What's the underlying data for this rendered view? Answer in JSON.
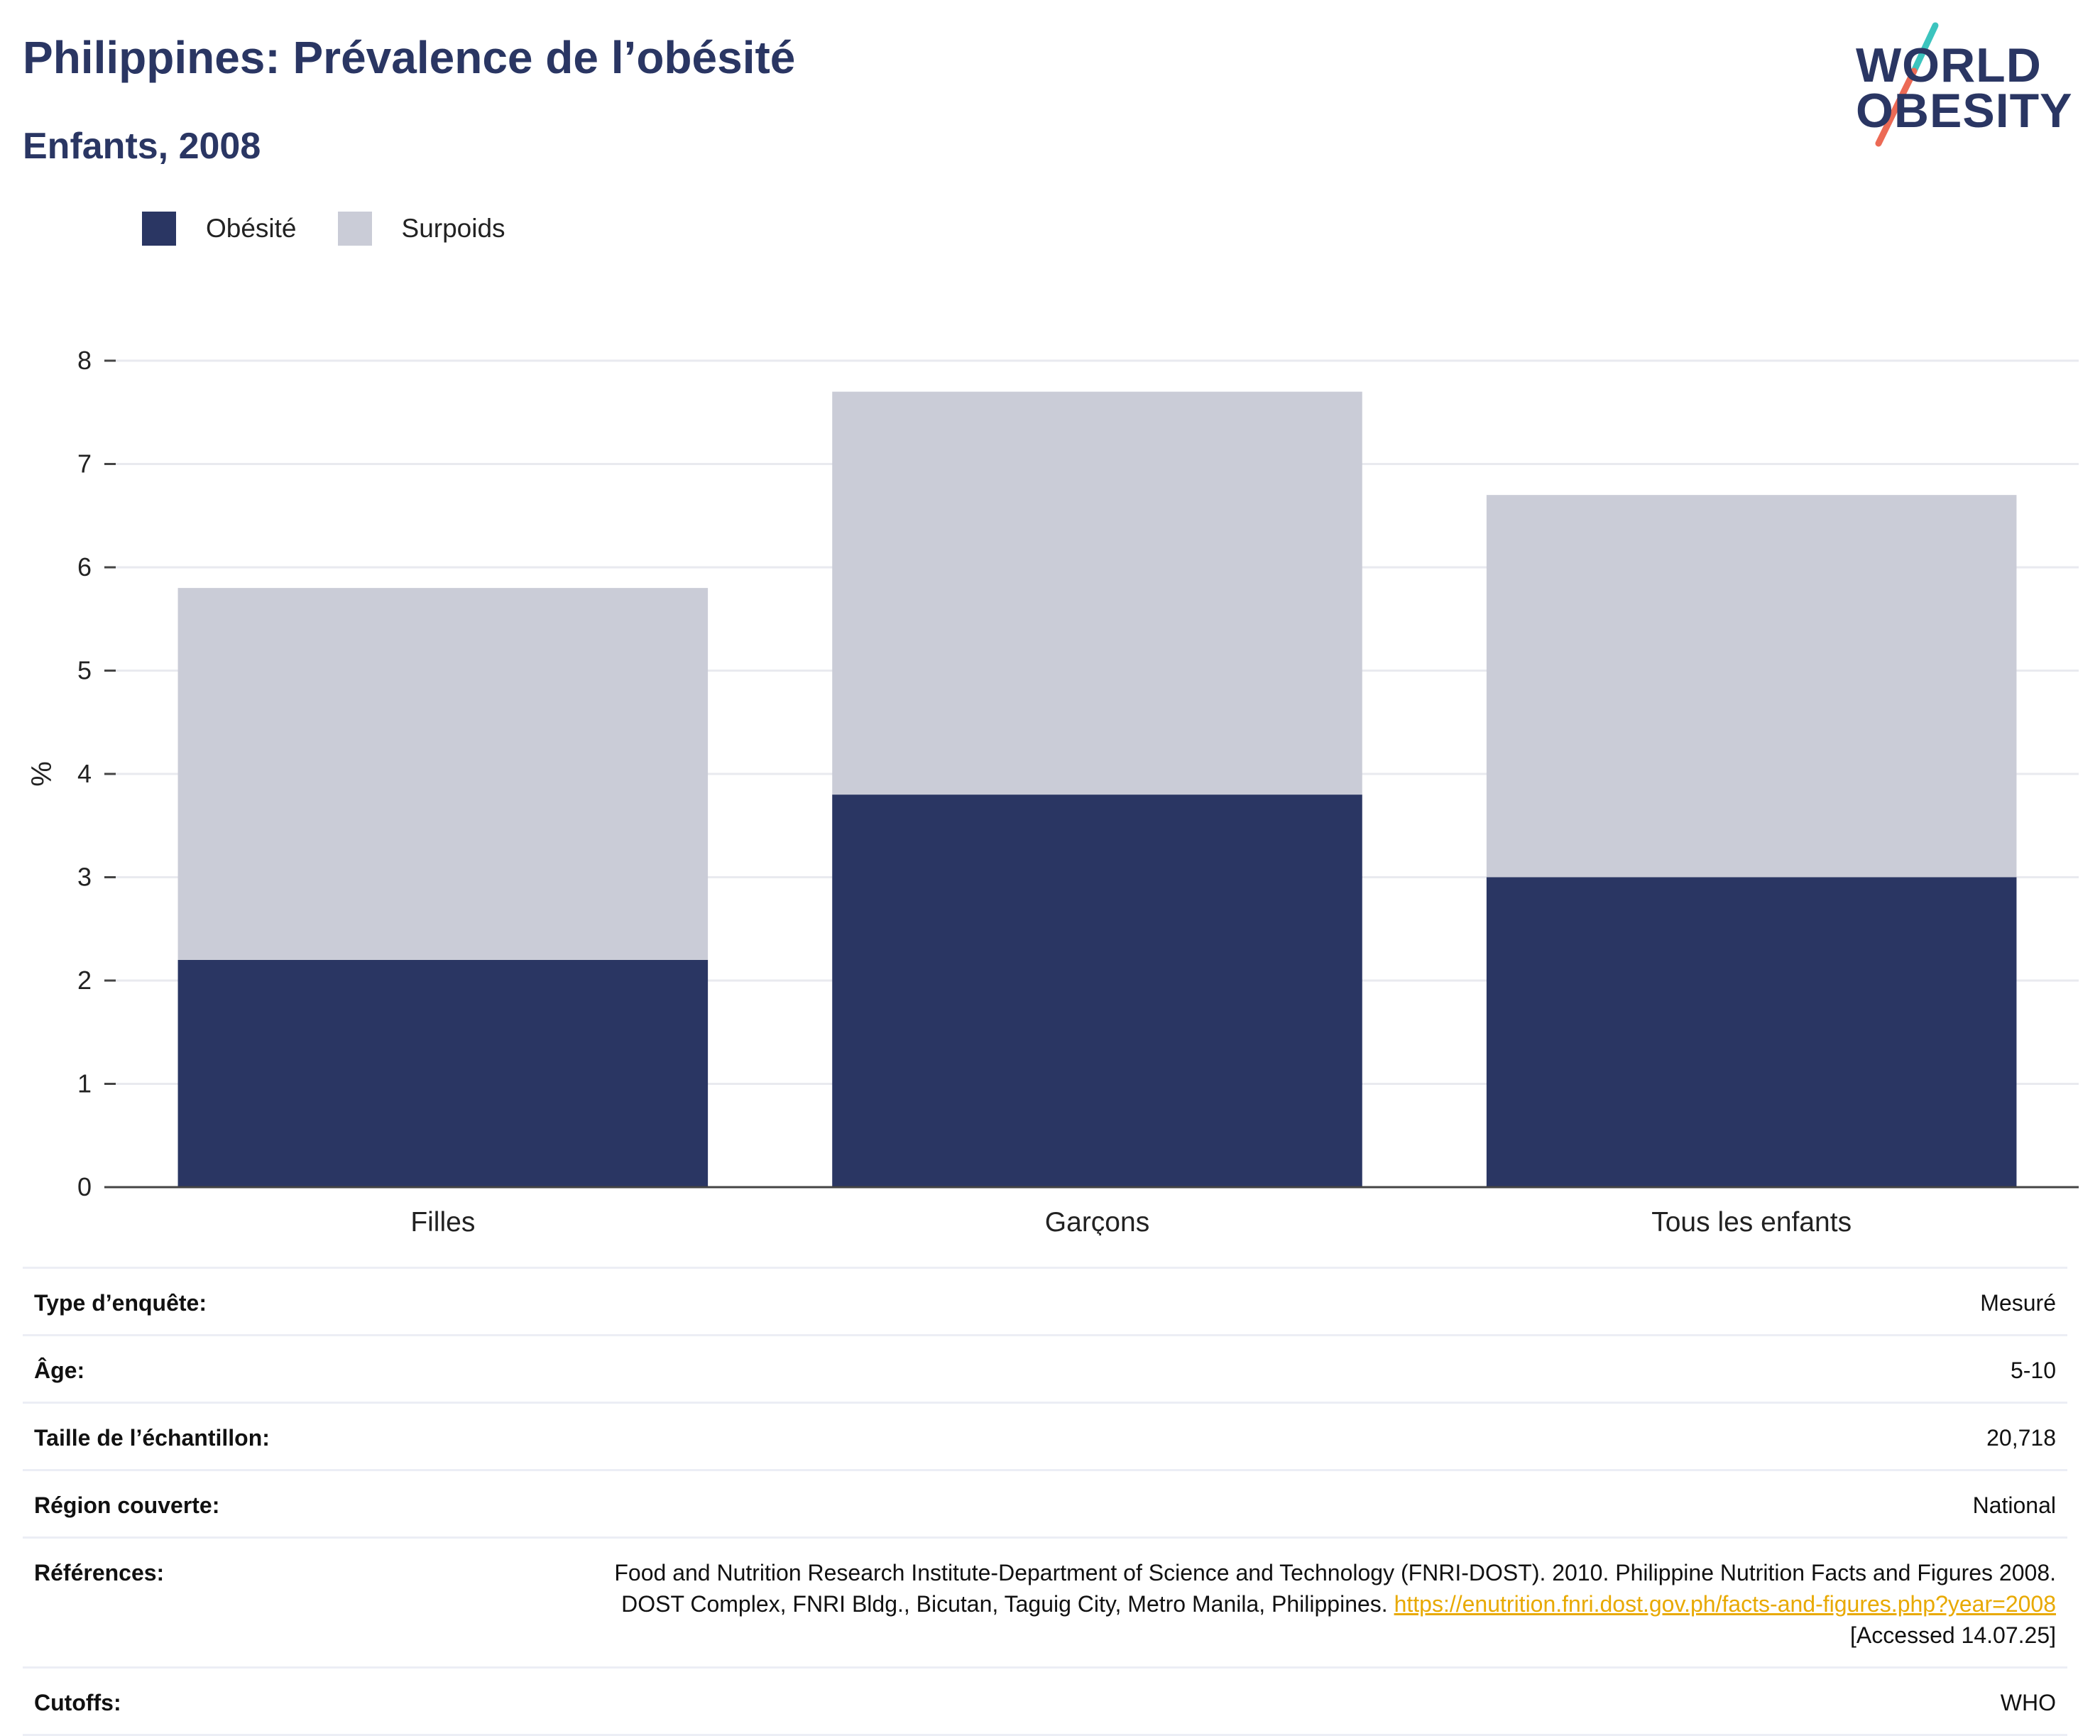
{
  "header": {
    "title": "Philippines: Prévalence de l’obésité",
    "subtitle": "Enfants, 2008"
  },
  "logo": {
    "line1": "WORLD",
    "line2": "OBESITY",
    "colors": {
      "text": "#2a3663",
      "slash_top": "#3cc4be",
      "slash_bottom": "#ec6a55"
    }
  },
  "legend": [
    {
      "label": "Obésité",
      "color": "#2a3663"
    },
    {
      "label": "Surpoids",
      "color": "#caccd7"
    }
  ],
  "chart_data": {
    "type": "bar",
    "stacked": true,
    "categories": [
      "Filles",
      "Garçons",
      "Tous les enfants"
    ],
    "series": [
      {
        "name": "Obésité",
        "values": [
          2.2,
          3.8,
          3.0
        ],
        "color": "#2a3663"
      },
      {
        "name": "Surpoids",
        "values": [
          3.6,
          3.9,
          3.7
        ],
        "color": "#caccd7"
      }
    ],
    "title": "Philippines: Prévalence de l’obésité",
    "subtitle": "Enfants, 2008",
    "xlabel": "",
    "ylabel": "%",
    "ylim": [
      0,
      8
    ],
    "yticks": [
      "0",
      "1",
      "2",
      "3",
      "4",
      "5",
      "6",
      "7",
      "8"
    ],
    "grid": true,
    "legend_position": "top-left"
  },
  "info": {
    "survey_type": {
      "label": "Type d’enquête:",
      "value": "Mesuré"
    },
    "age": {
      "label": "Âge:",
      "value": "5-10"
    },
    "sample_size": {
      "label": "Taille de l’échantillon:",
      "value": "20,718"
    },
    "region": {
      "label": "Région couverte:",
      "value": "National"
    },
    "references": {
      "label": "Références:",
      "text": "Food and Nutrition Research Institute-Department of Science and Technology (FNRI-DOST). 2010. Philippine Nutrition Facts and Figures 2008. DOST Complex, FNRI Bldg., Bicutan, Taguig City, Metro Manila, Philippines.",
      "link": "https://enutrition.fnri.dost.gov.ph/facts-and-figures.php?year=2008",
      "accessed": "[Accessed 14.07.25]"
    },
    "cutoffs": {
      "label": "Cutoffs:",
      "value": "WHO"
    }
  }
}
